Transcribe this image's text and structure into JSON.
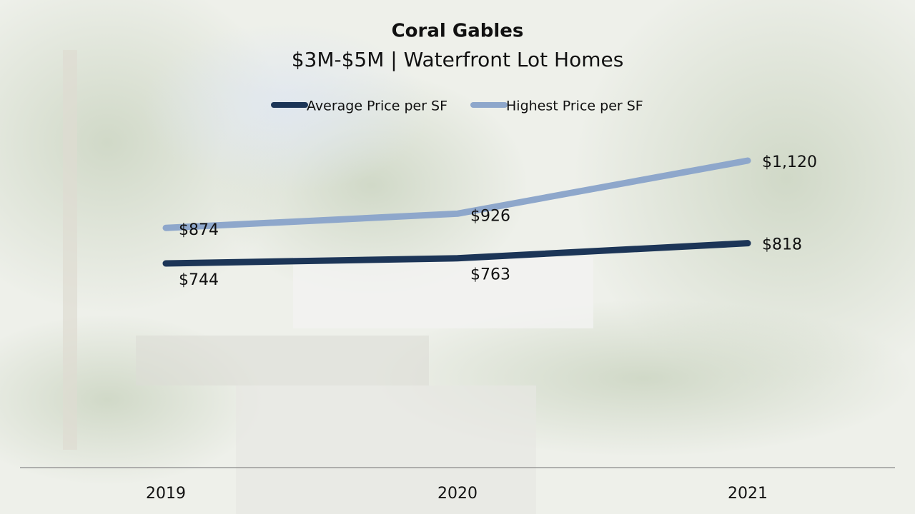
{
  "chart_data": {
    "type": "line",
    "title": "Coral Gables",
    "subtitle": "$3M-$5M | Waterfront Lot Homes",
    "categories": [
      "2019",
      "2020",
      "2021"
    ],
    "legend": "top",
    "series": [
      {
        "name": "Average Price per SF",
        "color": "#1c3557",
        "values": [
          744,
          763,
          818
        ],
        "value_labels": [
          "$744",
          "$763",
          "$818"
        ]
      },
      {
        "name": "Highest Price per SF",
        "color": "#8ea7cb",
        "values": [
          874,
          926,
          1120
        ],
        "value_labels": [
          "$874",
          "$926",
          "$1,120"
        ]
      }
    ]
  }
}
